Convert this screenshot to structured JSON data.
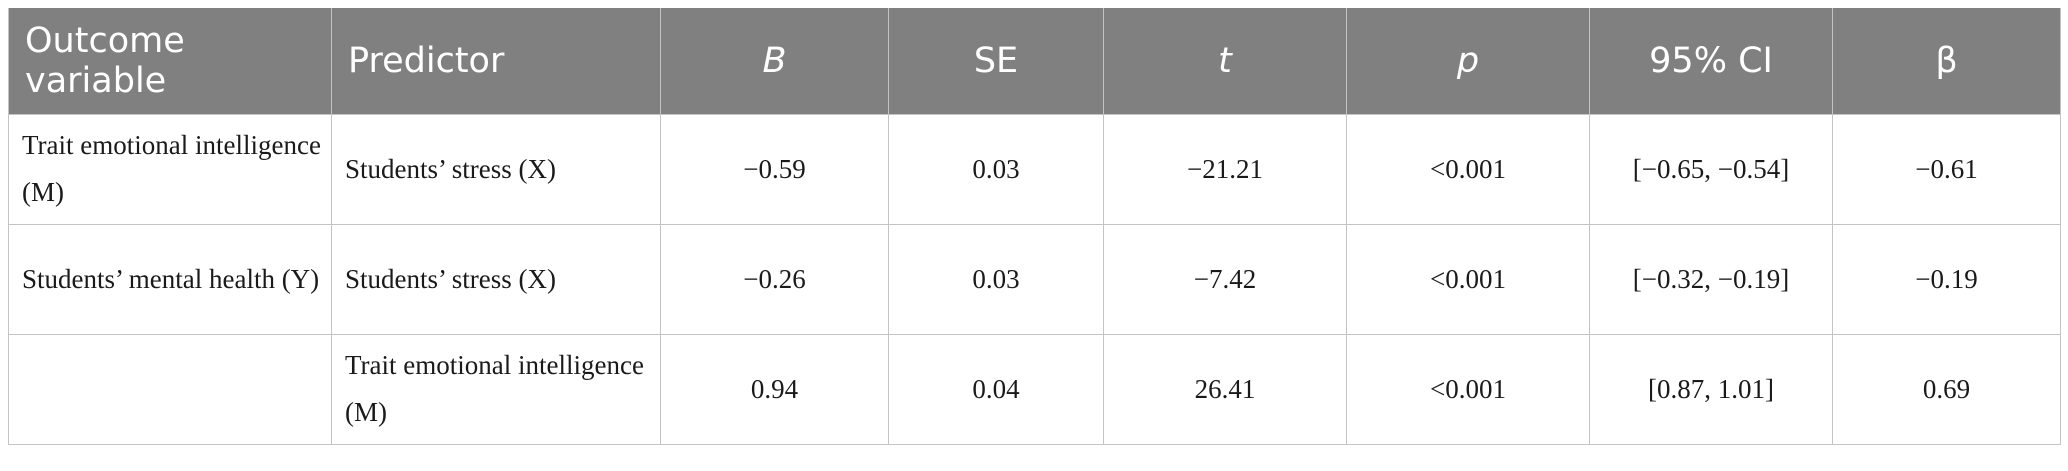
{
  "table": {
    "headers": {
      "outcome": "Outcome variable",
      "predictor": "Predictor",
      "b": "B",
      "se": "SE",
      "t": "t",
      "p": "p",
      "ci": "95% CI",
      "beta": "β"
    },
    "rows": [
      {
        "outcome": "Trait emotional intelligence (M)",
        "predictor": "Students’ stress (X)",
        "b": "−0.59",
        "se": "0.03",
        "t": "−21.21",
        "p": "<0.001",
        "ci": "[−0.65, −0.54]",
        "beta": "−0.61"
      },
      {
        "outcome": "Students’ mental health (Y)",
        "predictor": "Students’ stress (X)",
        "b": "−0.26",
        "se": "0.03",
        "t": "−7.42",
        "p": "<0.001",
        "ci": "[−0.32, −0.19]",
        "beta": "−0.19"
      },
      {
        "outcome": "",
        "predictor": "Trait emotional intelligence (M)",
        "b": "0.94",
        "se": "0.04",
        "t": "26.41",
        "p": "<0.001",
        "ci": "[0.87, 1.01]",
        "beta": "0.69"
      }
    ]
  }
}
